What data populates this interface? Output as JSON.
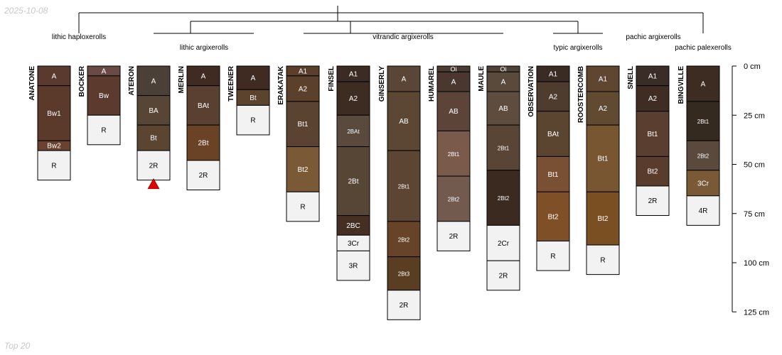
{
  "date": "2025-10-08",
  "footer": "Top 20",
  "depth_axis": {
    "unit": "cm",
    "ticks": [
      0,
      25,
      50,
      75,
      100,
      125
    ],
    "labels": [
      "0 cm",
      "25 cm",
      "50 cm",
      "75 cm",
      "100 cm",
      "125 cm"
    ]
  },
  "groups": [
    "lithic haploxerolls",
    "lithic argixerolls",
    "vitrandic argixerolls",
    "typic argixerolls",
    "pachic argixerolls",
    "pachic palexerolls"
  ],
  "marker": {
    "profile": "ATERON",
    "depth_cm": 57.5,
    "color": "#e00000"
  },
  "profiles": [
    {
      "name": "ANATONE",
      "horizons": [
        {
          "name": "A",
          "top": 0,
          "bottom": 10,
          "color": "#5a3a2e"
        },
        {
          "name": "Bw1",
          "top": 10,
          "bottom": 38,
          "color": "#5b3a2c"
        },
        {
          "name": "Bw2",
          "top": 38,
          "bottom": 43,
          "color": "#6b4230"
        },
        {
          "name": "R",
          "top": 43,
          "bottom": 58,
          "color": "#f2f2f2"
        }
      ]
    },
    {
      "name": "BOCKER",
      "horizons": [
        {
          "name": "A",
          "top": 0,
          "bottom": 5,
          "color": "#6a4a44"
        },
        {
          "name": "Bw",
          "top": 5,
          "bottom": 25,
          "color": "#5c3a2e"
        },
        {
          "name": "R",
          "top": 25,
          "bottom": 40,
          "color": "#f2f2f2"
        }
      ]
    },
    {
      "name": "ATERON",
      "horizons": [
        {
          "name": "A",
          "top": 0,
          "bottom": 15,
          "color": "#4a4038"
        },
        {
          "name": "BA",
          "top": 15,
          "bottom": 30,
          "color": "#574536"
        },
        {
          "name": "Bt",
          "top": 30,
          "bottom": 43,
          "color": "#5a4531"
        },
        {
          "name": "2R",
          "top": 43,
          "bottom": 58,
          "color": "#f2f2f2"
        }
      ]
    },
    {
      "name": "MERLIN",
      "horizons": [
        {
          "name": "A",
          "top": 0,
          "bottom": 10,
          "color": "#3f2b22"
        },
        {
          "name": "BAt",
          "top": 10,
          "bottom": 30,
          "color": "#5a4030"
        },
        {
          "name": "2Bt",
          "top": 30,
          "bottom": 48,
          "color": "#6a4225"
        },
        {
          "name": "2R",
          "top": 48,
          "bottom": 63,
          "color": "#f2f2f2"
        }
      ]
    },
    {
      "name": "TWEENER",
      "horizons": [
        {
          "name": "A",
          "top": 0,
          "bottom": 12,
          "color": "#3f2b22"
        },
        {
          "name": "Bt",
          "top": 12,
          "bottom": 20,
          "color": "#5c432d"
        },
        {
          "name": "R",
          "top": 20,
          "bottom": 35,
          "color": "#f2f2f2"
        }
      ]
    },
    {
      "name": "ERAKATAK",
      "horizons": [
        {
          "name": "A1",
          "top": 0,
          "bottom": 5,
          "color": "#5b3f2a"
        },
        {
          "name": "A2",
          "top": 5,
          "bottom": 18,
          "color": "#5b412c"
        },
        {
          "name": "Bt1",
          "top": 18,
          "bottom": 41,
          "color": "#5a4330"
        },
        {
          "name": "Bt2",
          "top": 41,
          "bottom": 64,
          "color": "#7a5a36"
        },
        {
          "name": "R",
          "top": 64,
          "bottom": 79,
          "color": "#f2f2f2"
        }
      ]
    },
    {
      "name": "FINSEL",
      "horizons": [
        {
          "name": "A1",
          "top": 0,
          "bottom": 8,
          "color": "#3a2c24"
        },
        {
          "name": "A2",
          "top": 8,
          "bottom": 25,
          "color": "#3d2c22"
        },
        {
          "name": "2BAt",
          "top": 25,
          "bottom": 41,
          "color": "#5a4a3e"
        },
        {
          "name": "2Bt",
          "top": 41,
          "bottom": 76,
          "color": "#574636"
        },
        {
          "name": "2BC",
          "top": 76,
          "bottom": 86,
          "color": "#442f22"
        },
        {
          "name": "3Cr",
          "top": 86,
          "bottom": 94,
          "color": "#f2f2f2"
        },
        {
          "name": "3R",
          "top": 94,
          "bottom": 109,
          "color": "#f2f2f2"
        }
      ]
    },
    {
      "name": "GINSERLY",
      "horizons": [
        {
          "name": "A",
          "top": 0,
          "bottom": 13,
          "color": "#5a4636"
        },
        {
          "name": "AB",
          "top": 13,
          "bottom": 43,
          "color": "#5c4734"
        },
        {
          "name": "2Bt1",
          "top": 43,
          "bottom": 79,
          "color": "#5c4532"
        },
        {
          "name": "2Bt2",
          "top": 79,
          "bottom": 97,
          "color": "#674428"
        },
        {
          "name": "2Bt3",
          "top": 97,
          "bottom": 114,
          "color": "#5a3e22"
        },
        {
          "name": "2R",
          "top": 114,
          "bottom": 129,
          "color": "#f2f2f2"
        }
      ]
    },
    {
      "name": "HUMAREL",
      "horizons": [
        {
          "name": "Oi",
          "top": 0,
          "bottom": 3,
          "color": "#4a3a32"
        },
        {
          "name": "A",
          "top": 3,
          "bottom": 13,
          "color": "#4a3730"
        },
        {
          "name": "AB",
          "top": 13,
          "bottom": 33,
          "color": "#5c4438"
        },
        {
          "name": "2Bt1",
          "top": 33,
          "bottom": 56,
          "color": "#7a5a4a"
        },
        {
          "name": "2Bt2",
          "top": 56,
          "bottom": 79,
          "color": "#735a4e"
        },
        {
          "name": "2R",
          "top": 79,
          "bottom": 94,
          "color": "#f2f2f2"
        }
      ]
    },
    {
      "name": "MAULE",
      "horizons": [
        {
          "name": "Oi",
          "top": 0,
          "bottom": 3,
          "color": "#4e4238"
        },
        {
          "name": "A",
          "top": 3,
          "bottom": 13,
          "color": "#5a4a3c"
        },
        {
          "name": "AB",
          "top": 13,
          "bottom": 30,
          "color": "#5e4c3e"
        },
        {
          "name": "2Bt1",
          "top": 30,
          "bottom": 53,
          "color": "#584536"
        },
        {
          "name": "2Bt2",
          "top": 53,
          "bottom": 81,
          "color": "#3a2a20"
        },
        {
          "name": "2Cr",
          "top": 81,
          "bottom": 99,
          "color": "#f2f2f2"
        },
        {
          "name": "2R",
          "top": 99,
          "bottom": 114,
          "color": "#f2f2f2"
        }
      ]
    },
    {
      "name": "OBSERVATION",
      "horizons": [
        {
          "name": "A1",
          "top": 0,
          "bottom": 8,
          "color": "#3a2c22"
        },
        {
          "name": "A2",
          "top": 8,
          "bottom": 23,
          "color": "#4e3c2e"
        },
        {
          "name": "BAt",
          "top": 23,
          "bottom": 46,
          "color": "#5c4530"
        },
        {
          "name": "Bt1",
          "top": 46,
          "bottom": 64,
          "color": "#7a5034"
        },
        {
          "name": "Bt2",
          "top": 64,
          "bottom": 89,
          "color": "#7f5028"
        },
        {
          "name": "R",
          "top": 89,
          "bottom": 104,
          "color": "#f2f2f2"
        }
      ]
    },
    {
      "name": "ROOSTERCOMB",
      "horizons": [
        {
          "name": "A1",
          "top": 0,
          "bottom": 13,
          "color": "#5e4630"
        },
        {
          "name": "A2",
          "top": 13,
          "bottom": 30,
          "color": "#614a32"
        },
        {
          "name": "Bt1",
          "top": 30,
          "bottom": 64,
          "color": "#785632"
        },
        {
          "name": "Bt2",
          "top": 64,
          "bottom": 91,
          "color": "#7a5022"
        },
        {
          "name": "R",
          "top": 91,
          "bottom": 106,
          "color": "#f2f2f2"
        }
      ]
    },
    {
      "name": "SNELL",
      "horizons": [
        {
          "name": "A1",
          "top": 0,
          "bottom": 10,
          "color": "#3a2c26"
        },
        {
          "name": "A2",
          "top": 10,
          "bottom": 23,
          "color": "#3f2d24"
        },
        {
          "name": "Bt1",
          "top": 23,
          "bottom": 46,
          "color": "#5a3e30"
        },
        {
          "name": "Bt2",
          "top": 46,
          "bottom": 61,
          "color": "#5a3c2c"
        },
        {
          "name": "2R",
          "top": 61,
          "bottom": 76,
          "color": "#f2f2f2"
        }
      ]
    },
    {
      "name": "BINGVILLE",
      "horizons": [
        {
          "name": "A",
          "top": 0,
          "bottom": 18,
          "color": "#3c2c22"
        },
        {
          "name": "2Bt1",
          "top": 18,
          "bottom": 38,
          "color": "#352a20"
        },
        {
          "name": "2Bt2",
          "top": 38,
          "bottom": 53,
          "color": "#5a4a3e"
        },
        {
          "name": "3Cr",
          "top": 53,
          "bottom": 66,
          "color": "#7a5a36"
        },
        {
          "name": "4R",
          "top": 66,
          "bottom": 81,
          "color": "#f2f2f2"
        }
      ]
    }
  ]
}
